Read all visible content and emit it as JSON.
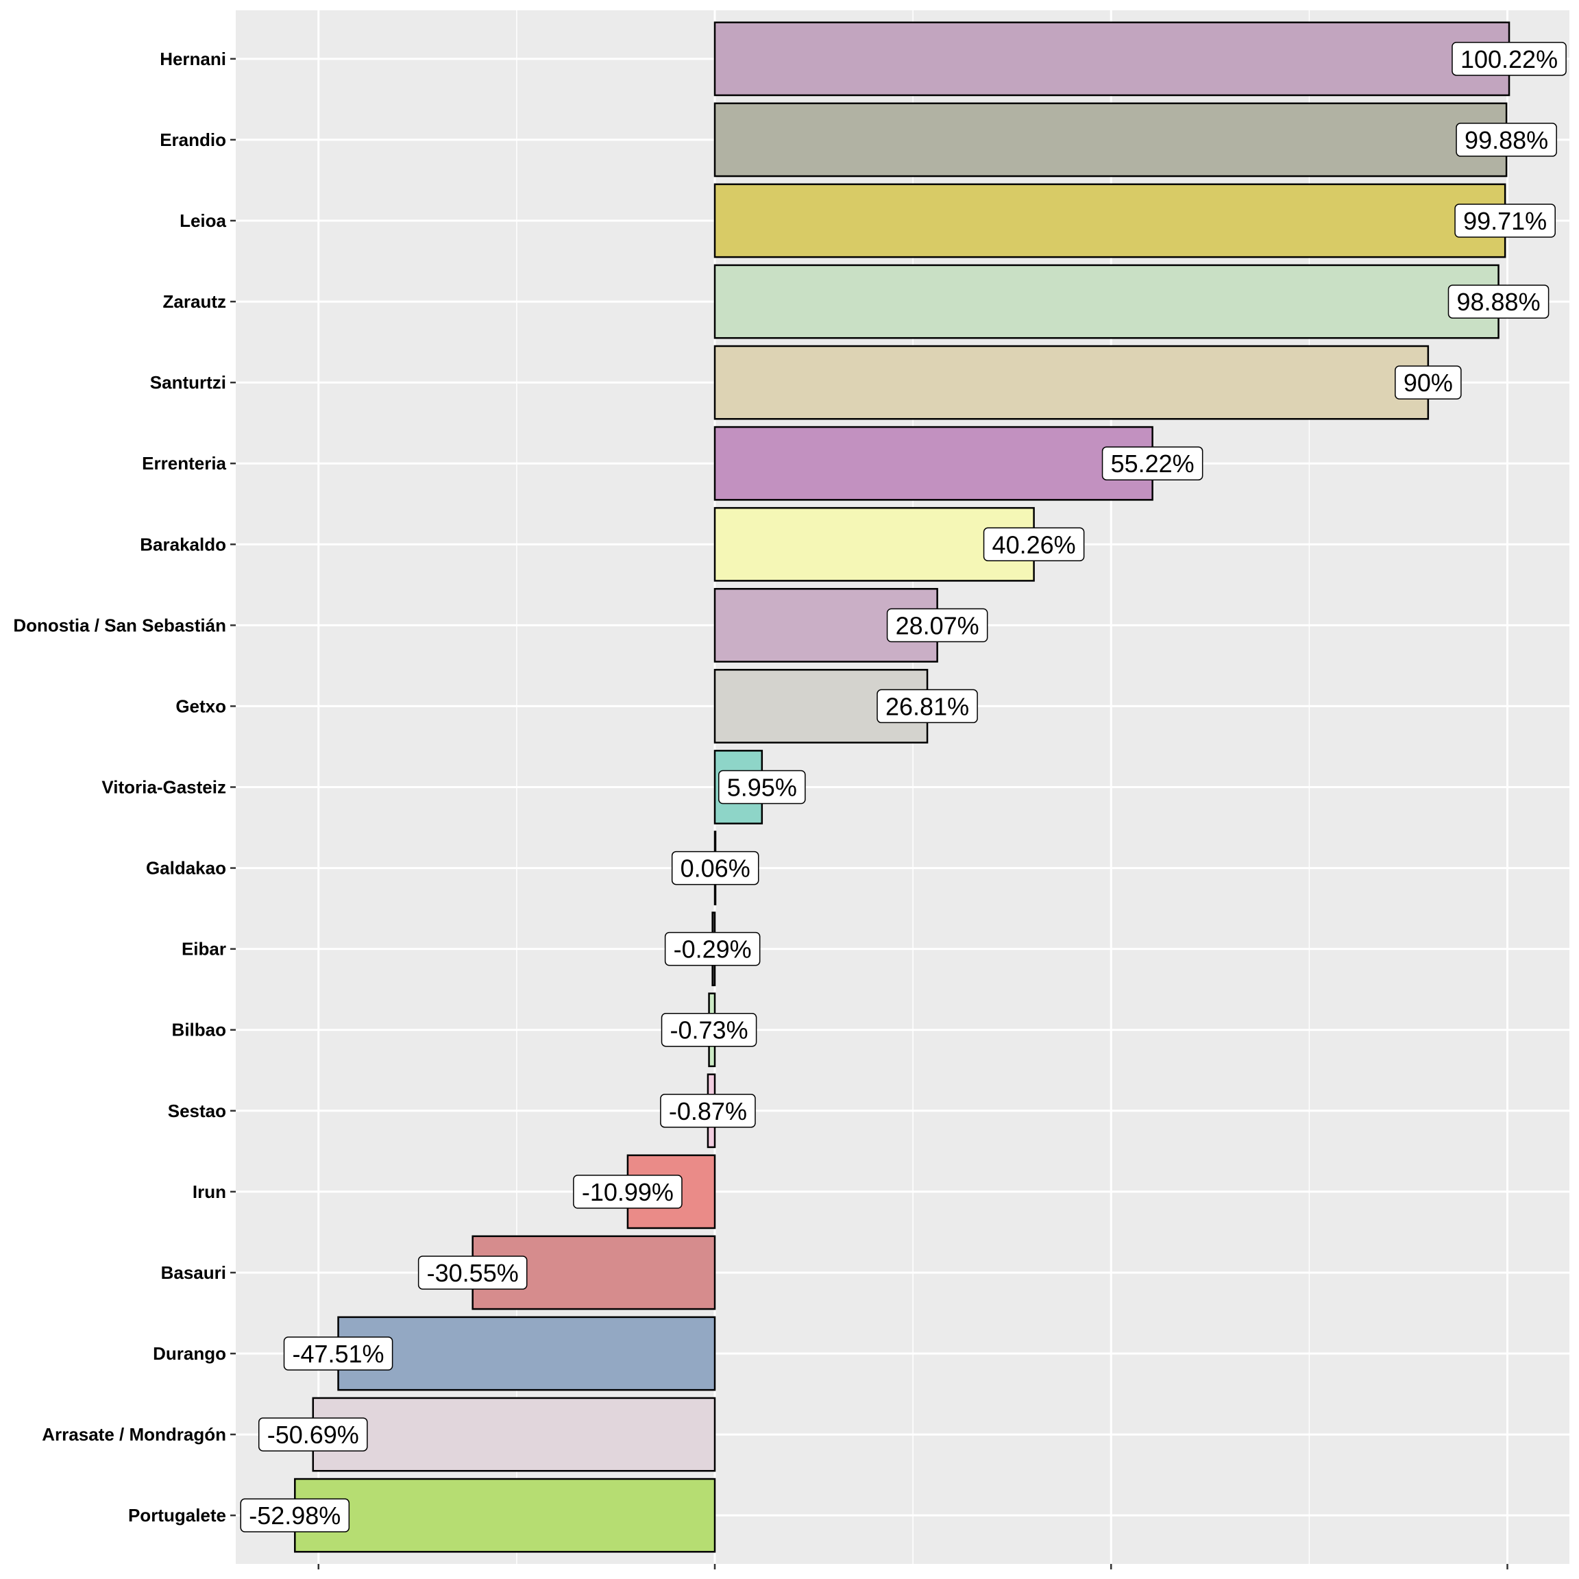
{
  "chart_data": {
    "type": "bar",
    "orientation": "horizontal",
    "title": "",
    "xlabel": "",
    "ylabel": "",
    "xlim": [
      -75,
      102
    ],
    "x_major_ticks": [
      -50,
      0,
      50,
      100
    ],
    "x_minor_gridlines": [
      -25,
      25,
      75
    ],
    "x_tick_labels_shown": false,
    "grid": true,
    "legend": "none",
    "categories": [
      "Hernani",
      "Erandio",
      "Leioa",
      "Zarautz",
      "Santurtzi",
      "Errenteria",
      "Barakaldo",
      "Donostia / San Sebastián",
      "Getxo",
      "Vitoria-Gasteiz",
      "Galdakao",
      "Eibar",
      "Bilbao",
      "Sestao",
      "Irun",
      "Basauri",
      "Durango",
      "Arrasate / Mondragón",
      "Portugalete"
    ],
    "values": [
      100.22,
      99.88,
      99.71,
      98.88,
      90,
      55.22,
      40.26,
      28.07,
      26.81,
      5.95,
      0.06,
      -0.29,
      -0.73,
      -0.87,
      -10.99,
      -30.55,
      -47.51,
      -50.69,
      -52.98
    ],
    "labels": [
      "100.22%",
      "99.88%",
      "99.71%",
      "98.88%",
      "90%",
      "55.22%",
      "40.26%",
      "28.07%",
      "26.81%",
      "5.95%",
      "0.06%",
      "-0.29%",
      "-0.73%",
      "-0.87%",
      "-10.99%",
      "-30.55%",
      "-47.51%",
      "-50.69%",
      "-52.98%"
    ],
    "colors": [
      "#C2A5BF",
      "#B1B2A3",
      "#D8CB66",
      "#C9E0C5",
      "#DDD3B4",
      "#C291C0",
      "#F5F7B6",
      "#CAAFC6",
      "#D4D3CE",
      "#8ED5C8",
      "#E8E8E8",
      "#5A5A5A",
      "#CCEBC5",
      "#F2CDE0",
      "#EA8B88",
      "#D68C8D",
      "#93A8C3",
      "#E1D6DC",
      "#B6DD72"
    ]
  },
  "theme": {
    "panel_background": "#EBEBEB",
    "grid_color": "#FFFFFF",
    "bar_outline": "#000000",
    "label_box_fill": "#FFFFFF"
  }
}
